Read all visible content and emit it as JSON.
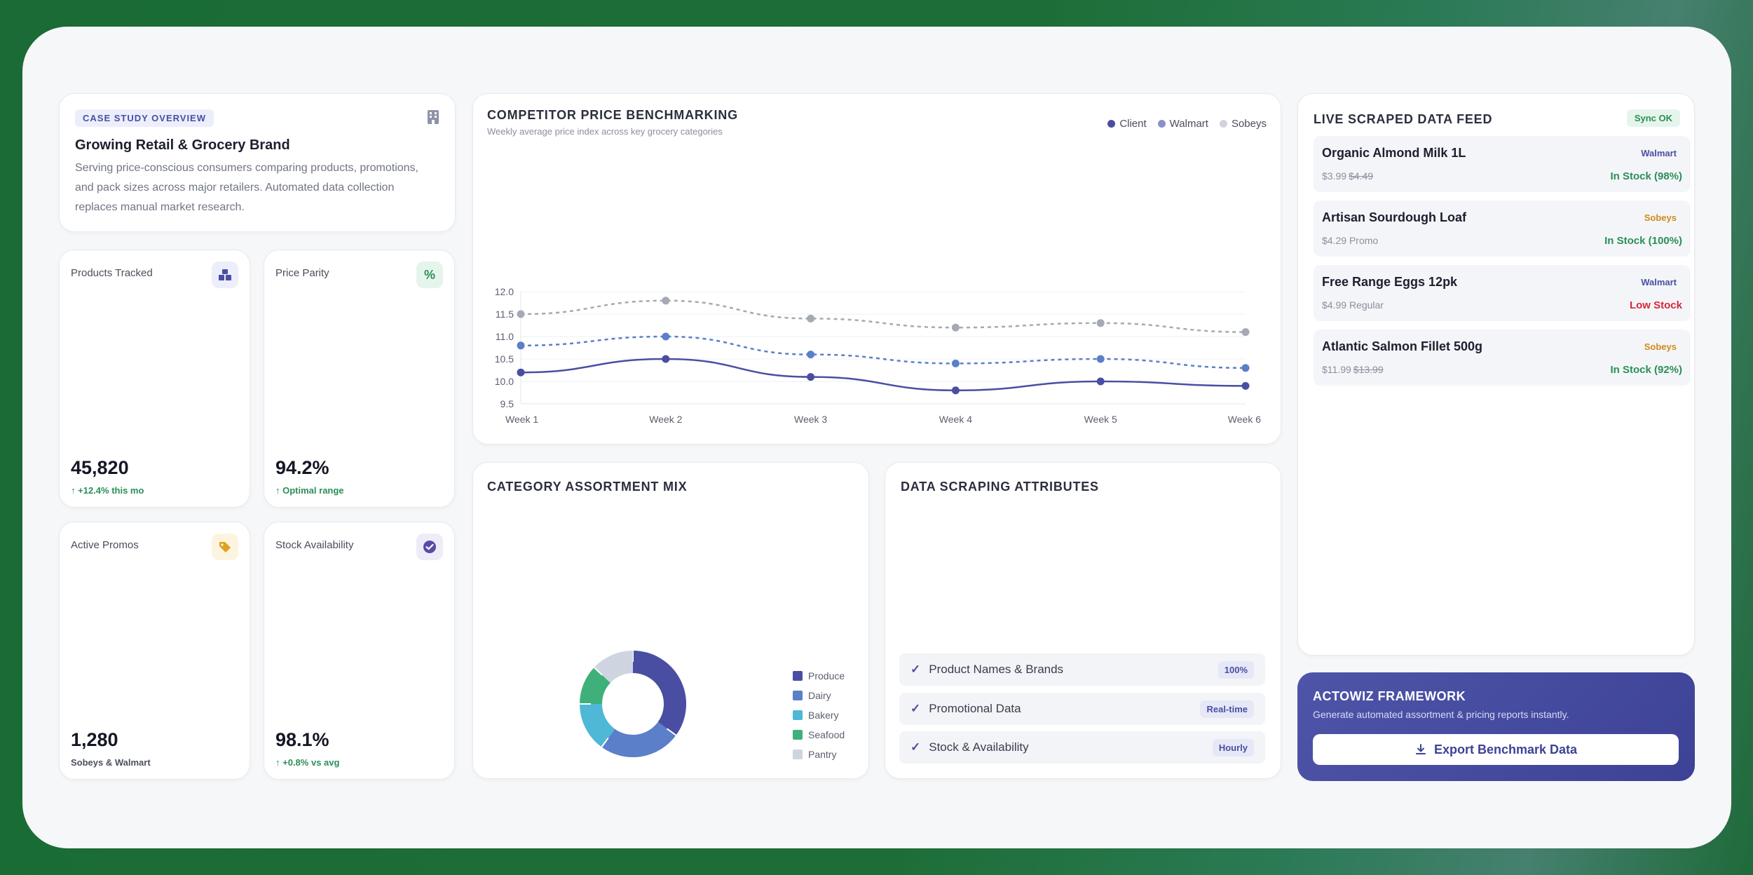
{
  "overview": {
    "badge": "CASE STUDY OVERVIEW",
    "title": "Growing Retail & Grocery Brand",
    "description": "Serving price-conscious consumers comparing products, promotions, and pack sizes across major retailers. Automated data collection replaces manual market research."
  },
  "kpis": [
    {
      "label": "Products Tracked",
      "value": "45,820",
      "sub": "+12.4% this mo",
      "icon": "boxes-icon",
      "trend": "up",
      "accent": "#4a4ea3"
    },
    {
      "label": "Price Parity",
      "value": "94.2%",
      "sub": "Optimal range",
      "icon": "percent-icon",
      "trend": "up",
      "accent": "#2a8f57"
    },
    {
      "label": "Active Promos",
      "value": "1,280",
      "sub": "Sobeys & Walmart",
      "icon": "tag-icon",
      "trend": "none",
      "accent": "#e0a020"
    },
    {
      "label": "Stock Availability",
      "value": "98.1%",
      "sub": "+0.8% vs avg",
      "icon": "check-badge-icon",
      "trend": "up",
      "accent": "#5a4ba8"
    }
  ],
  "price_chart": {
    "title": "COMPETITOR PRICE BENCHMARKING",
    "subtitle": "Weekly average price index across key grocery categories",
    "legend": [
      "Client",
      "Walmart",
      "Sobeys"
    ]
  },
  "assortment": {
    "title": "CATEGORY ASSORTMENT MIX"
  },
  "attributes": {
    "title": "DATA SCRAPING ATTRIBUTES",
    "items": [
      {
        "label": "Product Names & Brands",
        "tag": "100%"
      },
      {
        "label": "Promotional Data",
        "tag": "Real-time"
      },
      {
        "label": "Stock & Availability",
        "tag": "Hourly"
      }
    ]
  },
  "feed": {
    "title": "LIVE SCRAPED DATA FEED",
    "status": "Sync OK",
    "items": [
      {
        "name": "Organic Almond Milk 1L",
        "store": "Walmart",
        "price": "$3.99",
        "old_price": "$4.49",
        "note": "",
        "stock": "In Stock (98%)",
        "stock_state": "ok"
      },
      {
        "name": "Artisan Sourdough Loaf",
        "store": "Sobeys",
        "price": "$4.29",
        "old_price": "",
        "note": "Promo",
        "stock": "In Stock (100%)",
        "stock_state": "ok"
      },
      {
        "name": "Free Range Eggs 12pk",
        "store": "Walmart",
        "price": "$4.99",
        "old_price": "",
        "note": "Regular",
        "stock": "Low Stock",
        "stock_state": "low"
      },
      {
        "name": "Atlantic Salmon Fillet 500g",
        "store": "Sobeys",
        "price": "$11.99",
        "old_price": "$13.99",
        "note": "",
        "stock": "In Stock (92%)",
        "stock_state": "ok"
      }
    ]
  },
  "cta": {
    "title": "ACTOWIZ FRAMEWORK",
    "subtitle": "Generate automated assortment & pricing reports instantly.",
    "button": "Export Benchmark Data"
  },
  "colors": {
    "client": "#4a4ea3",
    "walmart": "#5b7fc8",
    "sobeys": "#a5a9b3",
    "produce": "#4a4ea3",
    "dairy": "#5b7fc8",
    "bakery": "#4fb8d6",
    "seafood": "#3fb07a",
    "pantry": "#cfd5e0"
  },
  "chart_data": [
    {
      "type": "line",
      "x": [
        "Week 1",
        "Week 2",
        "Week 3",
        "Week 4",
        "Week 5",
        "Week 6"
      ],
      "ylim": [
        9.5,
        12.0
      ],
      "yticks": [
        "9.5",
        "10.0",
        "10.5",
        "11.0",
        "11.5",
        "12.0"
      ],
      "series": [
        {
          "name": "Client",
          "values": [
            10.2,
            10.5,
            10.1,
            9.8,
            10.0,
            9.9
          ],
          "style": "solid"
        },
        {
          "name": "Walmart",
          "values": [
            10.8,
            11.0,
            10.6,
            10.4,
            10.5,
            10.3
          ],
          "style": "dashed"
        },
        {
          "name": "Sobeys",
          "values": [
            11.5,
            11.8,
            11.4,
            11.2,
            11.3,
            11.1
          ],
          "style": "dashed"
        }
      ],
      "grid": true,
      "legend": "top-right"
    },
    {
      "type": "pie",
      "donut": true,
      "categories": [
        "Produce",
        "Dairy",
        "Bakery",
        "Seafood",
        "Pantry"
      ],
      "values": [
        35,
        25,
        15,
        12,
        13
      ],
      "legend": "right"
    }
  ]
}
